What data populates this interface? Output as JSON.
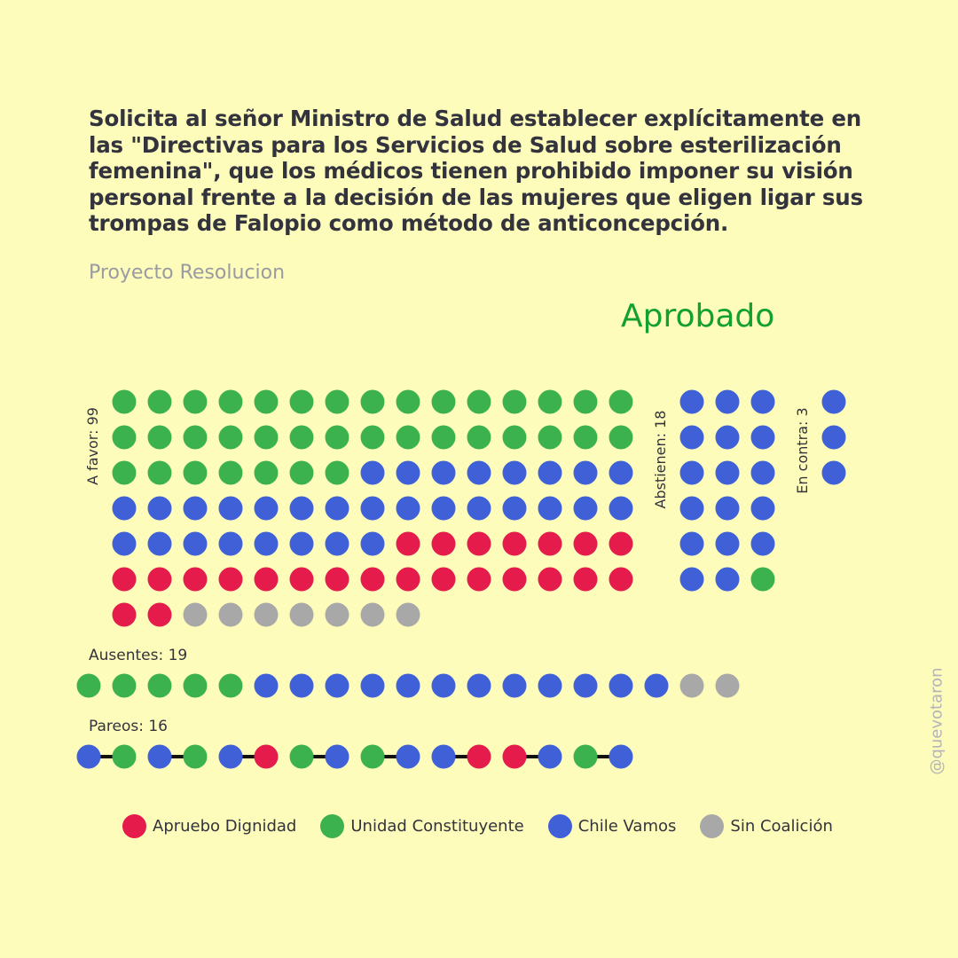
{
  "header": {
    "title": "Solicita al señor Ministro de Salud establecer explícitamente en las \"Directivas para los Servicios de Salud sobre esterilización femenina\", que los médicos tienen prohibido imponer su visión personal frente a la decisión de las mujeres que eligen ligar sus trompas de Falopio como método de anticoncepción.",
    "subtitle": "Proyecto Resolucion",
    "status": "Aprobado",
    "status_color": "#12a030"
  },
  "watermark": "@quevotaron",
  "colors": {
    "apruebo": "#e41b4b",
    "unidad": "#3bb24e",
    "chile": "#4060d8",
    "sin": "#a8a8a8"
  },
  "legend": [
    {
      "key": "apruebo",
      "label": "Apruebo Dignidad"
    },
    {
      "key": "unidad",
      "label": "Unidad Constituyente"
    },
    {
      "key": "chile",
      "label": "Chile Vamos"
    },
    {
      "key": "sin",
      "label": "Sin Coalición"
    }
  ],
  "chart_data": {
    "type": "waffle",
    "groups": [
      {
        "label": "A favor: 99",
        "count": 99,
        "columns": 15,
        "composition": [
          {
            "coalition": "unidad",
            "count": 37
          },
          {
            "coalition": "chile",
            "count": 31
          },
          {
            "coalition": "apruebo",
            "count": 24
          },
          {
            "coalition": "sin",
            "count": 7
          }
        ]
      },
      {
        "label": "Abstienen: 18",
        "count": 18,
        "columns": 3,
        "composition": [
          {
            "coalition": "chile",
            "count": 17
          },
          {
            "coalition": "unidad",
            "count": 1
          }
        ]
      },
      {
        "label": "En contra: 3",
        "count": 3,
        "columns": 1,
        "composition": [
          {
            "coalition": "chile",
            "count": 3
          }
        ]
      },
      {
        "label": "Ausentes: 19",
        "count": 19,
        "composition": [
          {
            "coalition": "unidad",
            "count": 5
          },
          {
            "coalition": "chile",
            "count": 12
          },
          {
            "coalition": "sin",
            "count": 2
          }
        ]
      },
      {
        "label": "Pareos: 16",
        "count": 16,
        "pairs": [
          [
            "chile",
            "unidad"
          ],
          [
            "chile",
            "unidad"
          ],
          [
            "chile",
            "apruebo"
          ],
          [
            "unidad",
            "chile"
          ],
          [
            "unidad",
            "chile"
          ],
          [
            "chile",
            "apruebo"
          ],
          [
            "apruebo",
            "chile"
          ],
          [
            "unidad",
            "chile"
          ]
        ]
      }
    ]
  }
}
